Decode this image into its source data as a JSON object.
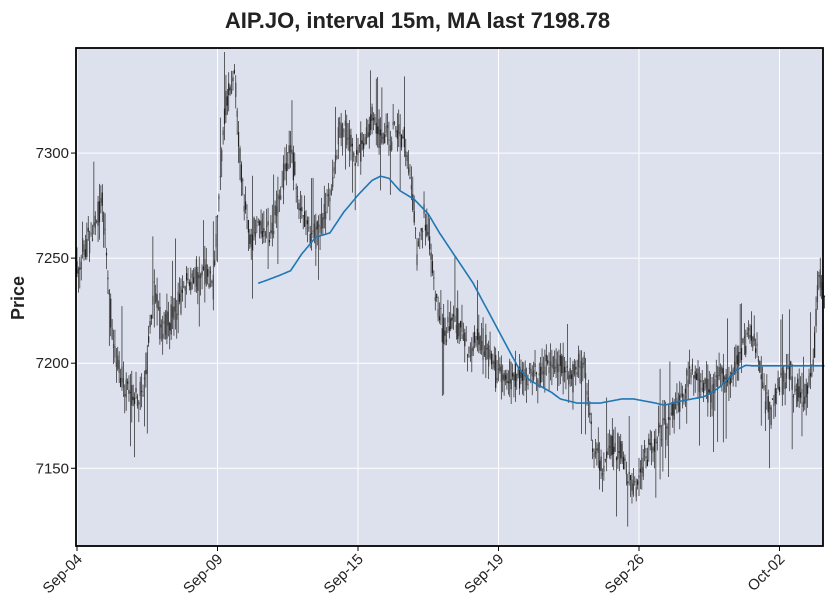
{
  "chart_data": {
    "type": "candlestick",
    "title": "AIP.JO, interval 15m, MA last 7198.78",
    "xlabel": "",
    "ylabel": "Price",
    "ylim": [
      7113,
      7350
    ],
    "y_ticks": [
      7150,
      7200,
      7250,
      7300
    ],
    "x_tick_labels": [
      "Sep-04",
      "Sep-09",
      "Sep-15",
      "Sep-19",
      "Sep-26",
      "Oct-02"
    ],
    "x_tick_bar_index": [
      0,
      100,
      200,
      300,
      400,
      500
    ],
    "bar_count": 533,
    "grid": true,
    "ma_last": 7198.78,
    "colors": {
      "plot_bg": "#dce1ed",
      "grid": "#ffffff",
      "candle": "#222222",
      "ma_line": "#1f77b4",
      "frame": "#000000"
    },
    "price_path": [
      [
        0,
        7245
      ],
      [
        10,
        7262
      ],
      [
        18,
        7277
      ],
      [
        25,
        7215
      ],
      [
        32,
        7192
      ],
      [
        40,
        7182
      ],
      [
        48,
        7188
      ],
      [
        55,
        7238
      ],
      [
        60,
        7215
      ],
      [
        68,
        7222
      ],
      [
        75,
        7232
      ],
      [
        82,
        7240
      ],
      [
        90,
        7244
      ],
      [
        97,
        7238
      ],
      [
        105,
        7322
      ],
      [
        112,
        7338
      ],
      [
        118,
        7280
      ],
      [
        123,
        7256
      ],
      [
        130,
        7268
      ],
      [
        138,
        7258
      ],
      [
        145,
        7282
      ],
      [
        152,
        7302
      ],
      [
        158,
        7278
      ],
      [
        163,
        7265
      ],
      [
        170,
        7262
      ],
      [
        176,
        7272
      ],
      [
        181,
        7282
      ],
      [
        186,
        7308
      ],
      [
        191,
        7312
      ],
      [
        197,
        7300
      ],
      [
        203,
        7302
      ],
      [
        210,
        7316
      ],
      [
        216,
        7308
      ],
      [
        222,
        7308
      ],
      [
        228,
        7310
      ],
      [
        233,
        7305
      ],
      [
        238,
        7285
      ],
      [
        242,
        7255
      ],
      [
        247,
        7268
      ],
      [
        251,
        7258
      ],
      [
        256,
        7228
      ],
      [
        262,
        7213
      ],
      [
        268,
        7220
      ],
      [
        274,
        7218
      ],
      [
        280,
        7204
      ],
      [
        286,
        7212
      ],
      [
        292,
        7206
      ],
      [
        298,
        7196
      ],
      [
        304,
        7194
      ],
      [
        310,
        7194
      ],
      [
        316,
        7192
      ],
      [
        322,
        7196
      ],
      [
        328,
        7192
      ],
      [
        334,
        7202
      ],
      [
        340,
        7198
      ],
      [
        346,
        7196
      ],
      [
        352,
        7193
      ],
      [
        358,
        7198
      ],
      [
        362,
        7194
      ],
      [
        368,
        7158
      ],
      [
        374,
        7150
      ],
      [
        380,
        7162
      ],
      [
        386,
        7160
      ],
      [
        392,
        7148
      ],
      [
        398,
        7140
      ],
      [
        404,
        7155
      ],
      [
        410,
        7162
      ],
      [
        416,
        7170
      ],
      [
        422,
        7175
      ],
      [
        428,
        7180
      ],
      [
        434,
        7192
      ],
      [
        440,
        7196
      ],
      [
        446,
        7188
      ],
      [
        452,
        7186
      ],
      [
        458,
        7198
      ],
      [
        464,
        7190
      ],
      [
        470,
        7202
      ],
      [
        476,
        7212
      ],
      [
        482,
        7214
      ],
      [
        488,
        7188
      ],
      [
        494,
        7178
      ],
      [
        500,
        7188
      ],
      [
        506,
        7196
      ],
      [
        512,
        7188
      ],
      [
        518,
        7182
      ],
      [
        524,
        7198
      ],
      [
        528,
        7244
      ],
      [
        533,
        7226
      ]
    ],
    "ma_start_index": 129,
    "ma_path": [
      [
        129,
        7238
      ],
      [
        137,
        7240
      ],
      [
        145,
        7242
      ],
      [
        152,
        7244
      ],
      [
        160,
        7252
      ],
      [
        170,
        7260
      ],
      [
        180,
        7262
      ],
      [
        190,
        7272
      ],
      [
        200,
        7280
      ],
      [
        210,
        7287
      ],
      [
        216,
        7289
      ],
      [
        222,
        7288
      ],
      [
        230,
        7282
      ],
      [
        240,
        7278
      ],
      [
        250,
        7271
      ],
      [
        258,
        7262
      ],
      [
        266,
        7254
      ],
      [
        274,
        7246
      ],
      [
        282,
        7238
      ],
      [
        290,
        7228
      ],
      [
        298,
        7218
      ],
      [
        306,
        7208
      ],
      [
        314,
        7198
      ],
      [
        322,
        7192
      ],
      [
        330,
        7189
      ],
      [
        338,
        7186
      ],
      [
        344,
        7183
      ],
      [
        350,
        7182
      ],
      [
        356,
        7181
      ],
      [
        364,
        7181
      ],
      [
        372,
        7181
      ],
      [
        380,
        7182
      ],
      [
        388,
        7183
      ],
      [
        396,
        7183
      ],
      [
        404,
        7182
      ],
      [
        412,
        7181
      ],
      [
        418,
        7180
      ],
      [
        424,
        7181
      ],
      [
        430,
        7182
      ],
      [
        438,
        7183
      ],
      [
        446,
        7184
      ],
      [
        452,
        7186
      ],
      [
        458,
        7189
      ],
      [
        464,
        7193
      ],
      [
        470,
        7197
      ],
      [
        476,
        7199
      ],
      [
        480,
        7198.78
      ]
    ]
  }
}
